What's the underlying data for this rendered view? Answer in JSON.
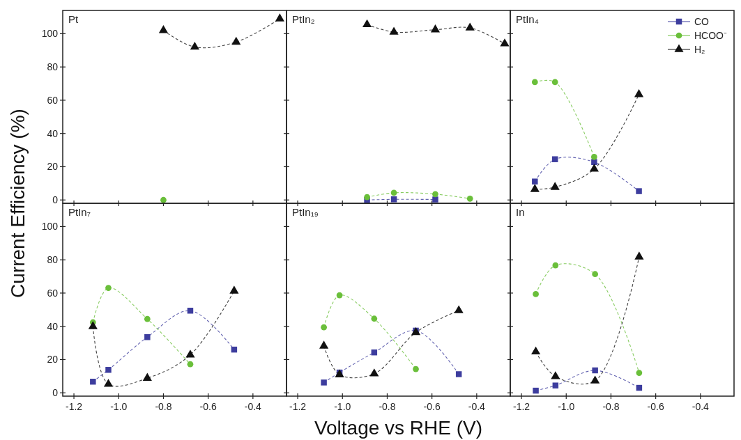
{
  "chart_data": [
    {
      "type": "line",
      "title": "Pt",
      "xlim": [
        -1.25,
        -0.25
      ],
      "ylim": [
        -2,
        114
      ],
      "tick_labels": "y",
      "line_style": "dashed",
      "xticks": [
        {
          "value": -1.2,
          "label": null
        },
        {
          "value": -1,
          "label": null
        },
        {
          "value": -0.8,
          "label": null
        },
        {
          "value": -0.6,
          "label": null
        },
        {
          "value": -0.4,
          "label": null
        }
      ],
      "yticks": [
        0,
        20,
        40,
        60,
        80,
        100
      ],
      "series": [
        {
          "color": "#6abf3a",
          "marker": "circle",
          "x": [
            -0.8
          ],
          "values": [
            0
          ]
        },
        {
          "color": "#111111",
          "marker": "triangle",
          "x": [
            -0.8,
            -0.66,
            -0.475,
            -0.28
          ],
          "values": [
            102,
            92,
            95,
            109
          ]
        }
      ]
    },
    {
      "type": "line",
      "title": "PtIn₂",
      "xlim": [
        -1.25,
        -0.25
      ],
      "ylim": [
        -2,
        114
      ],
      "tick_labels": false,
      "line_style": "dashed",
      "xticks": [
        {
          "value": -1.2,
          "label": null
        },
        {
          "value": -1,
          "label": null
        },
        {
          "value": -0.8,
          "label": null
        },
        {
          "value": -0.6,
          "label": null
        },
        {
          "value": -0.4,
          "label": null
        }
      ],
      "yticks": [
        {
          "value": 0,
          "label": null
        },
        {
          "value": 20,
          "label": null
        },
        {
          "value": 40,
          "label": null
        },
        {
          "value": 60,
          "label": null
        },
        {
          "value": 80,
          "label": null
        },
        {
          "value": 100,
          "label": null
        }
      ],
      "series": [
        {
          "color": "#3d3d9e",
          "marker": "square",
          "x": [
            -0.89,
            -0.77,
            -0.585
          ],
          "values": [
            0,
            0.4,
            0.3
          ]
        },
        {
          "color": "#6abf3a",
          "marker": "circle",
          "x": [
            -0.89,
            -0.77,
            -0.585,
            -0.43
          ],
          "values": [
            1.7,
            4.3,
            3.5,
            0.8
          ]
        },
        {
          "color": "#111111",
          "marker": "triangle",
          "x": [
            -0.89,
            -0.77,
            -0.585,
            -0.43,
            -0.275
          ],
          "values": [
            105.5,
            101,
            102.4,
            103.5,
            94
          ]
        }
      ]
    },
    {
      "type": "line",
      "title": "PtIn₄",
      "xlim": [
        -1.25,
        -0.25
      ],
      "ylim": [
        -2,
        114
      ],
      "tick_labels": false,
      "line_style": "dashed",
      "legend": "top right",
      "xticks": [
        {
          "value": -1.2,
          "label": null
        },
        {
          "value": -1,
          "label": null
        },
        {
          "value": -0.8,
          "label": null
        },
        {
          "value": -0.6,
          "label": null
        },
        {
          "value": -0.4,
          "label": null
        }
      ],
      "yticks": [
        {
          "value": 0,
          "label": null
        },
        {
          "value": 20,
          "label": null
        },
        {
          "value": 40,
          "label": null
        },
        {
          "value": 60,
          "label": null
        },
        {
          "value": 80,
          "label": null
        },
        {
          "value": 100,
          "label": null
        }
      ],
      "series": [
        {
          "name": "CO",
          "color": "#3d3d9e",
          "marker": "square",
          "x": [
            -1.14,
            -1.05,
            -0.875,
            -0.675
          ],
          "values": [
            11.1,
            24.5,
            22.8,
            5.3
          ]
        },
        {
          "name": "HCOO⁻",
          "color": "#6abf3a",
          "marker": "circle",
          "x": [
            -1.14,
            -1.05,
            -0.875
          ],
          "values": [
            70.9,
            70.9,
            25.9
          ]
        },
        {
          "name": "H₂",
          "color": "#111111",
          "marker": "triangle",
          "x": [
            -1.14,
            -1.05,
            -0.875,
            -0.675
          ],
          "values": [
            6.4,
            7.7,
            18.6,
            63.5
          ]
        }
      ]
    },
    {
      "type": "line",
      "title": "PtIn₇",
      "ylabel": "Current Efficiency (%)",
      "xlim": [
        -1.25,
        -0.25
      ],
      "ylim": [
        -2,
        114
      ],
      "line_style": "dashed",
      "xticks": [
        -1.2,
        {
          "value": -1,
          "label": "-1.0"
        },
        -0.8,
        -0.6,
        -0.4
      ],
      "yticks": [
        0,
        20,
        40,
        60,
        80,
        100
      ],
      "series": [
        {
          "color": "#3d3d9e",
          "marker": "square",
          "x": [
            -1.115,
            -1.046,
            -0.872,
            -0.68,
            -0.484
          ],
          "values": [
            6.7,
            13.8,
            33.5,
            49.4,
            26
          ]
        },
        {
          "color": "#6abf3a",
          "marker": "circle",
          "x": [
            -1.115,
            -1.046,
            -0.872,
            -0.68
          ],
          "values": [
            42.4,
            63.1,
            44.4,
            17.2
          ]
        },
        {
          "color": "#111111",
          "marker": "triangle",
          "x": [
            -1.115,
            -1.046,
            -0.872,
            -0.68,
            -0.484
          ],
          "values": [
            39.9,
            5.2,
            8.8,
            22.8,
            61.3
          ]
        }
      ]
    },
    {
      "type": "line",
      "title": "PtIn₁₉",
      "xlabel": "Voltage vs RHE (V)",
      "xlim": [
        -1.25,
        -0.25
      ],
      "ylim": [
        -2,
        114
      ],
      "tick_labels": "x",
      "line_style": "dashed",
      "xticks": [
        -1.2,
        {
          "value": -1,
          "label": "-1.0"
        },
        -0.8,
        -0.6,
        -0.4
      ],
      "yticks": [
        {
          "value": 0,
          "label": null
        },
        {
          "value": 20,
          "label": null
        },
        {
          "value": 40,
          "label": null
        },
        {
          "value": 60,
          "label": null
        },
        {
          "value": 80,
          "label": null
        },
        {
          "value": 100,
          "label": null
        }
      ],
      "series": [
        {
          "color": "#3d3d9e",
          "marker": "square",
          "x": [
            -1.083,
            -1.013,
            -0.858,
            -0.672,
            -0.48
          ],
          "values": [
            6.2,
            12.2,
            24.3,
            37.4,
            11.2
          ]
        },
        {
          "color": "#6abf3a",
          "marker": "circle",
          "x": [
            -1.083,
            -1.013,
            -0.858,
            -0.672
          ],
          "values": [
            39.4,
            58.7,
            44.6,
            14.3
          ]
        },
        {
          "color": "#111111",
          "marker": "triangle",
          "x": [
            -1.083,
            -1.013,
            -0.858,
            -0.672,
            -0.48
          ],
          "values": [
            28.2,
            10.9,
            11.5,
            36.3,
            49.5
          ]
        }
      ]
    },
    {
      "type": "line",
      "title": "In",
      "xlim": [
        -1.25,
        -0.25
      ],
      "ylim": [
        -2,
        114
      ],
      "tick_labels": "x",
      "line_style": "dashed",
      "xticks": [
        -1.2,
        {
          "value": -1,
          "label": "-1.0"
        },
        -0.8,
        -0.6,
        -0.4
      ],
      "yticks": [
        {
          "value": 0,
          "label": null
        },
        {
          "value": 20,
          "label": null
        },
        {
          "value": 40,
          "label": null
        },
        {
          "value": 60,
          "label": null
        },
        {
          "value": 80,
          "label": null
        },
        {
          "value": 100,
          "label": null
        }
      ],
      "series": [
        {
          "color": "#3d3d9e",
          "marker": "square",
          "x": [
            -1.136,
            -1.048,
            -0.871,
            -0.674
          ],
          "values": [
            1.3,
            4.4,
            13.5,
            3
          ]
        },
        {
          "color": "#6abf3a",
          "marker": "circle",
          "x": [
            -1.136,
            -1.048,
            -0.871,
            -0.674
          ],
          "values": [
            59.4,
            76.7,
            71.4,
            12
          ]
        },
        {
          "color": "#111111",
          "marker": "triangle",
          "x": [
            -1.136,
            -1.048,
            -0.871,
            -0.674
          ],
          "values": [
            24.7,
            9.8,
            7.2,
            81.8
          ]
        }
      ]
    }
  ]
}
